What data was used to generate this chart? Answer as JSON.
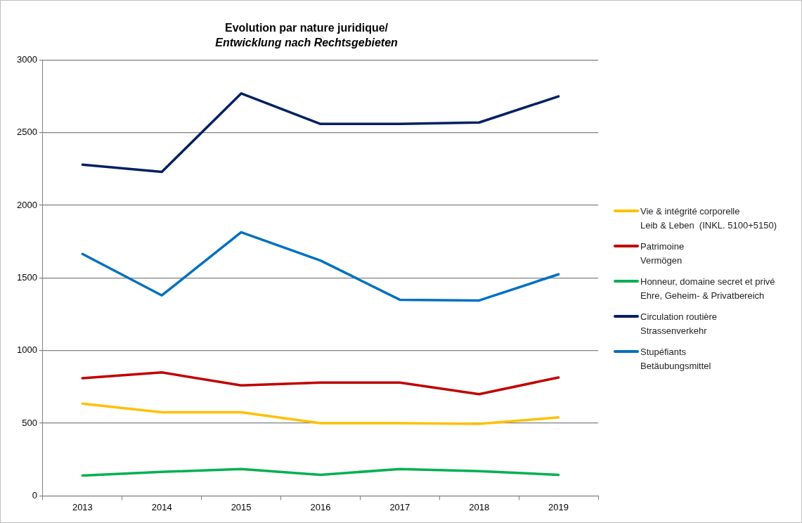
{
  "chart_data": {
    "type": "line",
    "title": "Evolution par nature juridique/",
    "subtitle": "Entwicklung nach Rechtsgebieten",
    "categories": [
      "2013",
      "2014",
      "2015",
      "2016",
      "2017",
      "2018",
      "2019"
    ],
    "series": [
      {
        "name": "Vie & intégrité corporelle\nLeib & Leben  (INKL. 5100+5150)",
        "color": "#ffc000",
        "values": [
          635,
          575,
          575,
          500,
          500,
          495,
          540
        ]
      },
      {
        "name": "Patrimoine\nVermögen",
        "color": "#c00000",
        "values": [
          810,
          850,
          760,
          780,
          780,
          700,
          815
        ]
      },
      {
        "name": "Honneur, domaine secret et privé\nEhre, Geheim- & Privatbereich",
        "color": "#00b050",
        "values": [
          140,
          165,
          185,
          145,
          185,
          170,
          145
        ]
      },
      {
        "name": "Circulation routière\nStrassenverkehr",
        "color": "#002060",
        "values": [
          2280,
          2230,
          2770,
          2560,
          2560,
          2570,
          2750
        ]
      },
      {
        "name": "Stupéfiants\nBetäubungsmittel",
        "color": "#0070c0",
        "values": [
          1665,
          1380,
          1815,
          1620,
          1350,
          1345,
          1525
        ]
      }
    ],
    "ylim": [
      0,
      3000
    ],
    "yticks": [
      0,
      500,
      1000,
      1500,
      2000,
      2500,
      3000
    ],
    "grid": "y",
    "legend": "right",
    "marker": "none",
    "line_style": "solid"
  }
}
